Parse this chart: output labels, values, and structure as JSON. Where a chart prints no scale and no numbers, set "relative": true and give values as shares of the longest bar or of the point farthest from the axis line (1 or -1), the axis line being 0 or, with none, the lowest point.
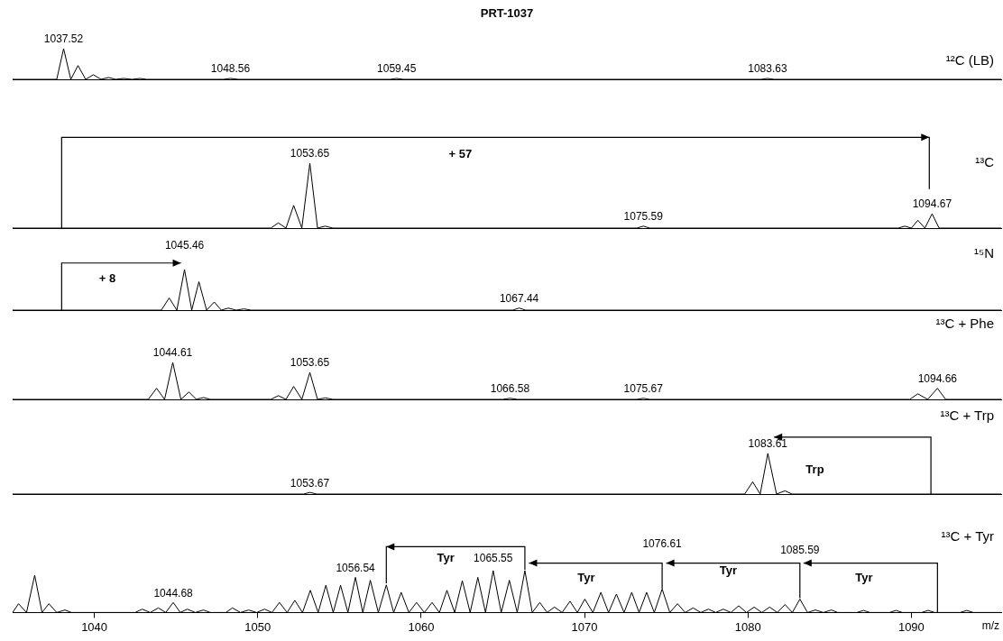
{
  "chart_data": [
    {
      "type": "line",
      "title": "PRT-1037",
      "relative": true,
      "xlim": [
        1035,
        1095.5
      ],
      "tick_labels": false,
      "series": [
        {
          "name": "¹²C (LB)",
          "color": "#000000",
          "x": [
            1035,
            1037.7,
            1038.12,
            1038.56,
            1039.0,
            1039.47,
            1039.94,
            1040.41,
            1040.88,
            1041.3,
            1041.8,
            1042.3,
            1042.8,
            1043.2,
            1047.9,
            1048.33,
            1048.8,
            1058.1,
            1058.5,
            1058.9,
            1080.8,
            1081.2,
            1081.6,
            1095.5
          ],
          "values": [
            0,
            0,
            1,
            0,
            0.45,
            0,
            0.15,
            0,
            0.06,
            0,
            0.03,
            0,
            0.03,
            0,
            0,
            0.03,
            0,
            0,
            0.03,
            0,
            0,
            0.03,
            0,
            0
          ]
        }
      ],
      "annotations": [
        {
          "text": "1037.52",
          "x": 1038.12,
          "y": 1
        },
        {
          "text": "1048.56",
          "x": 1048.33,
          "y": 0.03
        },
        {
          "text": "1059.45",
          "x": 1058.5,
          "y": 0.03
        },
        {
          "text": "1083.63",
          "x": 1081.2,
          "y": 0.03
        }
      ]
    },
    {
      "type": "line",
      "relative": true,
      "xlim": [
        1035,
        1095.5
      ],
      "tick_labels": false,
      "series": [
        {
          "name": "¹³C",
          "color": "#000000",
          "x": [
            1035,
            1050.8,
            1051.26,
            1051.73,
            1052.2,
            1052.7,
            1053.19,
            1053.66,
            1054.13,
            1054.6,
            1073.2,
            1073.6,
            1074.0,
            1089.2,
            1089.6,
            1090.0,
            1090.4,
            1090.83,
            1091.27,
            1091.7,
            1095.5
          ],
          "values": [
            0,
            0,
            0.08,
            0,
            0.35,
            0,
            1,
            0,
            0.03,
            0,
            0,
            0.03,
            0,
            0,
            0.03,
            0,
            0.12,
            0,
            0.22,
            0,
            0
          ]
        }
      ],
      "annotations": [
        {
          "text": "1053.65",
          "x": 1053.19,
          "y": 1
        },
        {
          "text": "1075.59",
          "x": 1073.6,
          "y": 0.03
        },
        {
          "text": "1094.67",
          "x": 1091.27,
          "y": 0.22
        },
        "+ 57"
      ]
    },
    {
      "type": "line",
      "relative": true,
      "xlim": [
        1035,
        1095.5
      ],
      "tick_labels": false,
      "series": [
        {
          "name": "¹⁵N",
          "color": "#000000",
          "x": [
            1035,
            1044.1,
            1044.58,
            1045.05,
            1045.52,
            1045.96,
            1046.4,
            1046.87,
            1047.34,
            1047.77,
            1048.2,
            1048.68,
            1049.16,
            1049.6,
            1065.6,
            1066.0,
            1066.4,
            1095.5
          ],
          "values": [
            0,
            0,
            0.3,
            0,
            1,
            0,
            0.7,
            0,
            0.2,
            0,
            0.05,
            0,
            0.03,
            0,
            0,
            0.05,
            0,
            0
          ]
        }
      ],
      "annotations": [
        {
          "text": "1045.46",
          "x": 1045.52,
          "y": 1
        },
        {
          "text": "1067.44",
          "x": 1066.0,
          "y": 0.05
        },
        "+ 8"
      ]
    },
    {
      "type": "line",
      "relative": true,
      "xlim": [
        1035,
        1095.5
      ],
      "tick_labels": false,
      "series": [
        {
          "name": "¹³C + Phe",
          "color": "#000000",
          "x": [
            1035,
            1043.3,
            1043.81,
            1044.3,
            1044.8,
            1045.3,
            1045.79,
            1046.24,
            1046.68,
            1047.1,
            1050.8,
            1051.26,
            1051.73,
            1052.2,
            1052.7,
            1053.19,
            1053.66,
            1054.13,
            1054.6,
            1065.0,
            1065.44,
            1065.9,
            1073.2,
            1073.6,
            1074.0,
            1089.9,
            1090.4,
            1091.0,
            1091.6,
            1092.1,
            1095.5
          ],
          "values": [
            0,
            0,
            0.3,
            0,
            1,
            0,
            0.2,
            0,
            0.05,
            0,
            0,
            0.1,
            0,
            0.35,
            0,
            0.73,
            0,
            0.04,
            0,
            0,
            0.03,
            0,
            0,
            0.03,
            0,
            0,
            0.15,
            0,
            0.3,
            0,
            0
          ]
        }
      ],
      "annotations": [
        {
          "text": "1044.61",
          "x": 1044.8,
          "y": 1
        },
        {
          "text": "1053.65",
          "x": 1053.19,
          "y": 0.73
        },
        {
          "text": "1066.58",
          "x": 1065.44,
          "y": 0.03
        },
        {
          "text": "1075.67",
          "x": 1073.6,
          "y": 0.03
        },
        {
          "text": "1094.66",
          "x": 1091.6,
          "y": 0.3
        }
      ]
    },
    {
      "type": "line",
      "relative": true,
      "xlim": [
        1035,
        1095.5
      ],
      "tick_labels": false,
      "series": [
        {
          "name": "¹³C + Trp",
          "color": "#000000",
          "x": [
            1035,
            1052.8,
            1053.19,
            1053.6,
            1079.8,
            1080.29,
            1080.75,
            1081.22,
            1081.75,
            1082.27,
            1082.7,
            1095.5
          ],
          "values": [
            0,
            0,
            0.04,
            0,
            0,
            0.3,
            0,
            1,
            0,
            0.08,
            0,
            0
          ]
        }
      ],
      "annotations": [
        {
          "text": "1083.61",
          "x": 1081.22,
          "y": 1
        },
        {
          "text": "1053.67",
          "x": 1053.19,
          "y": 0.04
        },
        "Trp"
      ]
    },
    {
      "type": "line",
      "relative": true,
      "xlim": [
        1035,
        1095.5
      ],
      "xticks": [
        1040,
        1050,
        1060,
        1070,
        1080,
        1090
      ],
      "xlabel": "m/z",
      "tick_labels": "x",
      "series": [
        {
          "name": "¹³C + Tyr",
          "color": "#000000",
          "x": [
            1035,
            1035.36,
            1035.85,
            1036.35,
            1036.8,
            1037.22,
            1037.7,
            1038.2,
            1038.6,
            1042.5,
            1042.93,
            1043.42,
            1043.92,
            1044.37,
            1044.83,
            1045.26,
            1045.69,
            1046.18,
            1046.68,
            1047.1,
            1048.05,
            1048.45,
            1048.94,
            1049.44,
            1049.93,
            1050.42,
            1050.87,
            1051.33,
            1051.8,
            1052.27,
            1052.74,
            1053.22,
            1053.7,
            1054.17,
            1054.62,
            1055.07,
            1055.52,
            1055.98,
            1056.43,
            1056.89,
            1057.38,
            1057.87,
            1058.32,
            1058.78,
            1059.25,
            1059.72,
            1060.2,
            1060.67,
            1061.12,
            1061.58,
            1062.05,
            1062.52,
            1063.0,
            1063.47,
            1063.94,
            1064.41,
            1064.9,
            1065.4,
            1065.88,
            1066.35,
            1066.8,
            1067.26,
            1067.71,
            1068.16,
            1068.63,
            1069.11,
            1069.56,
            1070.02,
            1070.51,
            1071.0,
            1071.47,
            1071.95,
            1072.42,
            1072.89,
            1073.34,
            1073.8,
            1074.27,
            1074.75,
            1075.22,
            1075.69,
            1076.16,
            1076.64,
            1077.11,
            1077.58,
            1078.03,
            1078.49,
            1078.96,
            1079.44,
            1079.91,
            1080.38,
            1080.85,
            1081.33,
            1081.8,
            1082.27,
            1082.72,
            1083.18,
            1083.65,
            1084.13,
            1084.62,
            1085.11,
            1085.5,
            1086.67,
            1087.07,
            1087.47,
            1088.66,
            1089.06,
            1089.46,
            1090.63,
            1091.03,
            1091.43,
            1092.99,
            1093.39,
            1093.79,
            1095.5
          ],
          "values": [
            0,
            0.21,
            0,
            0.89,
            0,
            0.21,
            0,
            0.06,
            0,
            0,
            0.08,
            0,
            0.11,
            0,
            0.24,
            0,
            0.08,
            0,
            0.06,
            0,
            0,
            0.11,
            0,
            0.06,
            0,
            0.08,
            0,
            0.24,
            0,
            0.29,
            0,
            0.53,
            0,
            0.65,
            0,
            0.65,
            0,
            0.84,
            0,
            0.77,
            0,
            0.66,
            0,
            0.48,
            0,
            0.24,
            0,
            0.24,
            0,
            0.53,
            0,
            0.76,
            0,
            0.84,
            0,
            1,
            0,
            0.77,
            0,
            1,
            0,
            0.24,
            0,
            0.13,
            0,
            0.27,
            0,
            0.32,
            0,
            0.48,
            0,
            0.44,
            0,
            0.48,
            0,
            0.48,
            0,
            0.56,
            0,
            0.21,
            0,
            0.11,
            0,
            0.08,
            0,
            0.08,
            0,
            0.16,
            0,
            0.13,
            0,
            0.13,
            0,
            0.19,
            0,
            0.32,
            0,
            0.06,
            0,
            0.06,
            0,
            0,
            0.05,
            0,
            0,
            0.05,
            0,
            0,
            0.05,
            0,
            0,
            0.05,
            0,
            0
          ]
        }
      ],
      "annotations": [
        {
          "text": "1044.68",
          "x": 1044.83,
          "y": 0.24
        },
        {
          "text": "1056.54",
          "x": 1055.98,
          "y": 0.84
        },
        {
          "text": "1065.55",
          "x": 1064.41,
          "y": 1
        },
        {
          "text": "1076.61",
          "x": 1074.75,
          "y": 0.56
        },
        {
          "text": "1085.59",
          "x": 1083.18,
          "y": 0.32
        },
        "Tyr",
        "Tyr",
        "Tyr",
        "Tyr"
      ]
    }
  ]
}
